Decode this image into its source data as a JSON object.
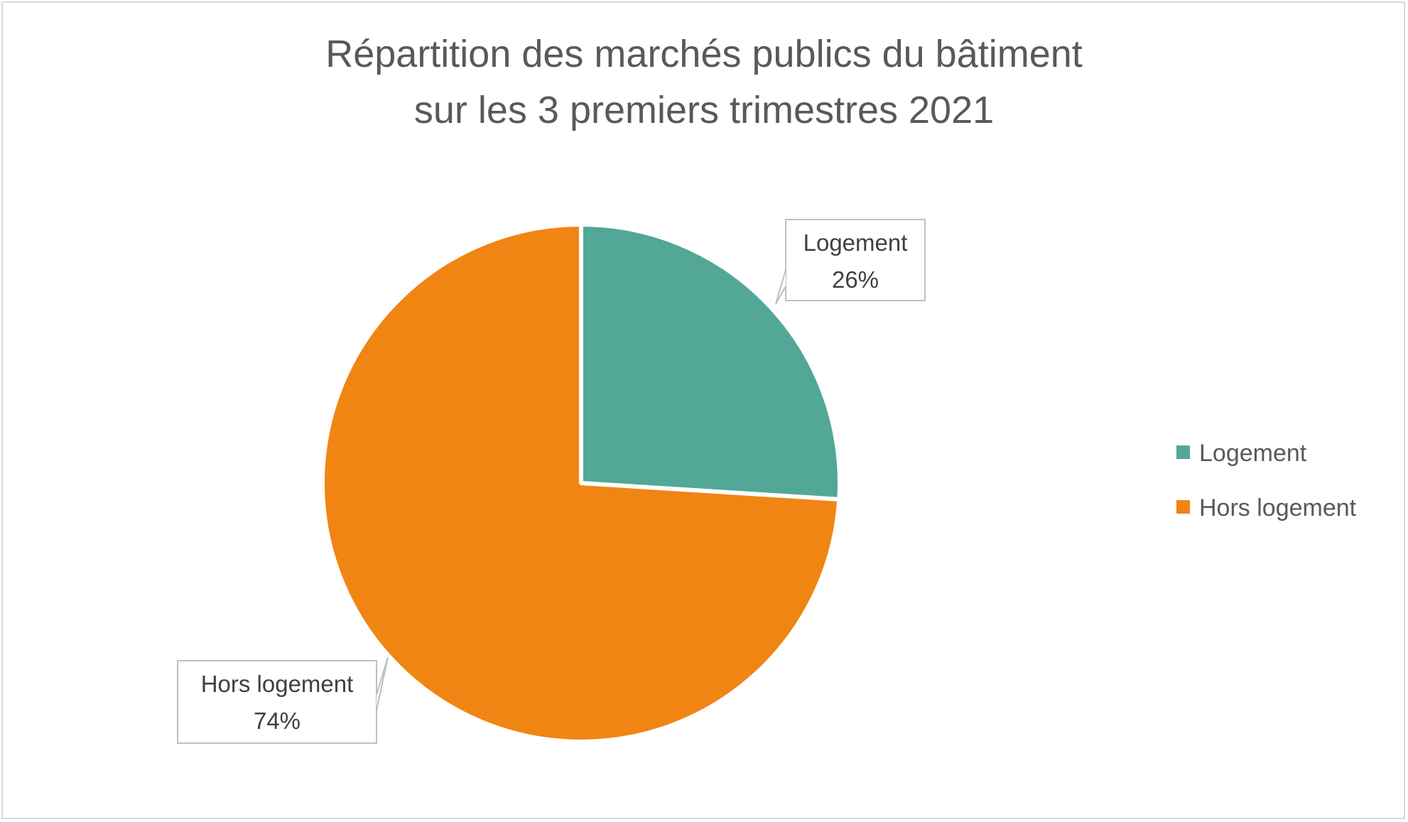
{
  "chart_data": {
    "type": "pie",
    "title": "Répartition des marchés publics du bâtiment",
    "subtitle": "sur les 3 premiers trimestres  2021",
    "categories": [
      "Logement",
      "Hors logement"
    ],
    "values": [
      26,
      74
    ],
    "unit": "%",
    "data_labels": [
      {
        "name": "Logement",
        "value": "26%"
      },
      {
        "name": "Hors logement",
        "value": "74%"
      }
    ],
    "colors": [
      "#52a797",
      "#f08514"
    ],
    "legend": {
      "position": "right",
      "items": [
        "Logement",
        "Hors logement"
      ]
    },
    "start_angle_deg": 0
  }
}
